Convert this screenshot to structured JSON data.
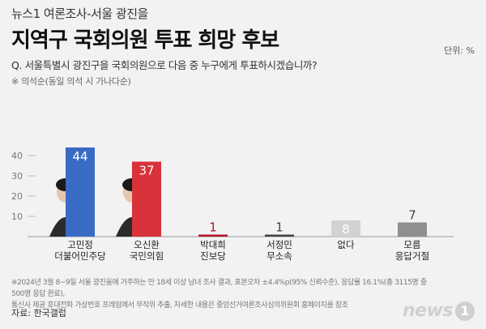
{
  "header": {
    "kicker": "뉴스1 여론조사-서울 광진을",
    "title": "지역구 국회의원 투표 희망 후보",
    "unit": "단위: %",
    "question": "Q. 서울특별시 광진구을 국회의원으로 다음 중 누구에게 투표하시겠습니까?",
    "subnote": "※ 의석순(동일 의석 시 가나다순)"
  },
  "chart_data": {
    "type": "bar",
    "categories": [
      [
        "고민정",
        "더불어민주당"
      ],
      [
        "오신환",
        "국민의힘"
      ],
      [
        "박대희",
        "진보당"
      ],
      [
        "서정민",
        "무소속"
      ],
      [
        "없다"
      ],
      [
        "모름",
        "응답거절"
      ]
    ],
    "values": [
      44,
      37,
      1,
      1,
      8,
      7
    ],
    "colors": [
      "#3a6bc4",
      "#d8323a",
      "#b8142a",
      "#444444",
      "#d2d2d2",
      "#8f8f8f"
    ],
    "label_colors": [
      "#ffffff",
      "#ffffff",
      "#b8142a",
      "#444444",
      "#ffffff",
      "#444444"
    ],
    "label_inside": [
      true,
      true,
      false,
      false,
      true,
      false
    ],
    "photos": [
      true,
      true,
      false,
      false,
      false,
      false
    ],
    "yticks": [
      10,
      20,
      30,
      40
    ],
    "ylim": [
      0,
      50
    ],
    "grid": false,
    "title": "지역구 국회의원 투표 희망 후보"
  },
  "footer": {
    "note1": "※2024년 3월 8~9일 서울 광진을에 거주하는 만 18세 이상 남녀 조사 결과, 표본오차 ±4.4%p(95% 신뢰수준), 응답률 16.1%(총 3115명 중 500명 응답 완료),",
    "note2": "통신사 제공 휴대전화 가상번호 프레임에서 무작위 추출, 자세한 내용은 중앙선거여론조사심의위원회 홈페이지를 참조",
    "source": "자료: 한국갤럽",
    "logo_text": "news",
    "logo_mark": "1"
  }
}
